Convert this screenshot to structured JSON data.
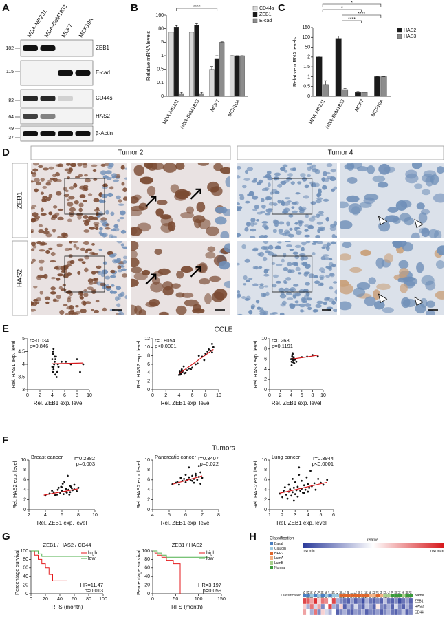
{
  "panels": {
    "A": {
      "label": "A",
      "cell_lines": [
        "MDA-MB231",
        "MDA-BoM1833",
        "MCF7",
        "MCF10A"
      ],
      "markers": [
        182,
        115,
        82,
        64,
        49,
        37
      ],
      "proteins": [
        "ZEB1",
        "E-cad",
        "CD44s",
        "HAS2",
        "β-Actin"
      ]
    },
    "D": {
      "label": "D",
      "tumors": [
        "Tumor 2",
        "Tumor 4"
      ],
      "stains": [
        "ZEB1",
        "HAS2"
      ]
    },
    "E": {
      "label": "E",
      "title": "CCLE"
    },
    "F": {
      "label": "F",
      "title": "Tumors"
    },
    "G": {
      "label": "G"
    },
    "H": {
      "label": "H",
      "classification_title": "Classification",
      "classes": [
        {
          "name": "Basal",
          "color": "#4a7fc1"
        },
        {
          "name": "Claudin",
          "color": "#9ecae1"
        },
        {
          "name": "HER2",
          "color": "#e0662a"
        },
        {
          "name": "LumA",
          "color": "#f4b183"
        },
        {
          "name": "LumB",
          "color": "#a9d18e"
        },
        {
          "name": "Normal",
          "color": "#3a9a3a"
        }
      ],
      "scale_title": "relative",
      "scale_min": "row min",
      "scale_max": "row max",
      "samples": [
        "GSM50105",
        "GSM501245",
        "GSM501246",
        "GSM50225",
        "GSM59170",
        "GSM441080",
        "GSM411086",
        "GSM441117",
        "GSM50229",
        "GSM50247",
        "GSM441166",
        "GSM44541",
        "GSM441140",
        "GSM472561",
        "GSM472531",
        "GSM441108",
        "GSM44677",
        "GSM44486",
        "GSM411096",
        "GSM44553",
        "GSM727818",
        "GSM727804",
        "GSM44583",
        "GSM727851",
        "GSM727870",
        "GSM727868",
        "GSM727884",
        "GSM727866",
        "GSM727890",
        "GSM727858"
      ],
      "sample_classes": [
        "Basal",
        "Basal",
        "Claudin",
        "Basal",
        "Claudin",
        "Basal",
        "Claudin",
        "Basal",
        "Claudin",
        "Claudin",
        "HER2",
        "HER2",
        "HER2",
        "HER2",
        "HER2",
        "HER2",
        "HER2",
        "HER2",
        "LumA",
        "LumA",
        "HER2",
        "LumA",
        "LumB",
        "LumB",
        "Normal",
        "Normal",
        "Normal",
        "LumB",
        "Normal",
        "Normal"
      ],
      "class_row_label": "Classification",
      "row_header": "Name",
      "rows": [
        {
          "name": "ZEB1",
          "values": [
            0.9,
            0.85,
            0.7,
            0.95,
            0.6,
            0.8,
            0.75,
            0.5,
            0.9,
            0.3,
            0.2,
            0.15,
            0.1,
            0.25,
            0.1,
            0.2,
            0.05,
            0.3,
            0.15,
            0.1,
            0.2,
            0.1,
            0.35,
            0.15,
            0.1,
            0.2,
            0.05,
            0.15,
            0.25,
            0.1
          ]
        },
        {
          "name": "HAS2",
          "values": [
            0.6,
            0.3,
            0.8,
            0.4,
            0.7,
            0.2,
            0.5,
            0.9,
            0.3,
            0.2,
            0.6,
            0.1,
            0.3,
            0.15,
            0.4,
            0.2,
            0.1,
            0.35,
            0.25,
            0.1,
            0.55,
            0.2,
            0.15,
            0.3,
            0.1,
            0.4,
            0.2,
            0.1,
            0.3,
            0.15
          ]
        },
        {
          "name": "CD44",
          "values": [
            0.7,
            0.5,
            0.3,
            0.8,
            0.2,
            0.6,
            0.4,
            0.3,
            0.5,
            0.1,
            0.2,
            0.3,
            0.15,
            0.1,
            0.25,
            0.2,
            0.3,
            0.1,
            0.2,
            0.15,
            0.25,
            0.1,
            0.2,
            0.3,
            0.15,
            0.1,
            0.2,
            0.35,
            0.1,
            0.2
          ]
        }
      ]
    }
  },
  "chart_data": [
    {
      "panel": "B",
      "type": "bar",
      "ylabel": "Relative mRNA levels",
      "categories": [
        "MDA-MB231",
        "MDA-BoM1833",
        "MCF7",
        "MCF10A"
      ],
      "series": [
        {
          "name": "CD44s",
          "color": "#d9d9d9",
          "values": [
            60,
            60,
            0.5,
            1
          ],
          "errors": [
            2,
            2,
            0.1,
            0
          ]
        },
        {
          "name": "ZEB1",
          "color": "#1a1a1a",
          "values": [
            90,
            100,
            0.9,
            1
          ],
          "errors": [
            8,
            10,
            0.1,
            0
          ]
        },
        {
          "name": "E-cad",
          "color": "#8c8c8c",
          "values": [
            0.02,
            0.02,
            5,
            1
          ],
          "errors": [
            0.01,
            0.01,
            2,
            0
          ]
        }
      ],
      "ylim": [
        0,
        160
      ],
      "yticks": [
        0,
        0.1,
        0.5,
        1,
        5,
        80,
        160
      ],
      "annotations": [
        "****"
      ]
    },
    {
      "panel": "C",
      "type": "bar",
      "ylabel": "Relative mRNA levels",
      "categories": [
        "MDA-MB231",
        "MDA-BoM1833",
        "MCF7",
        "MCF10A"
      ],
      "series": [
        {
          "name": "HAS2",
          "color": "#1a1a1a",
          "values": [
            2.2,
            95,
            0.2,
            1
          ],
          "errors": [
            0.1,
            12,
            0.05,
            0
          ]
        },
        {
          "name": "HAS3",
          "color": "#8c8c8c",
          "values": [
            0.6,
            0.35,
            0.2,
            1
          ],
          "errors": [
            0.2,
            0.05,
            0.03,
            0
          ]
        }
      ],
      "ylim": [
        0,
        150
      ],
      "yticks": [
        0,
        0.5,
        1,
        1.5,
        2,
        50,
        100,
        150
      ],
      "annotations": [
        "*",
        "*",
        "****",
        "****"
      ]
    },
    {
      "type": "scatter",
      "xlabel": "Rel. ZEB1 exp. level",
      "ylabel": "Rel. HAS1 exp. level",
      "annotations": [
        "r=-0.034",
        "p=0.846"
      ],
      "x": [
        4,
        4.2,
        4.1,
        4.3,
        4.5,
        4.4,
        4,
        4.6,
        4.2,
        4.8,
        4.3,
        4.1,
        5,
        4.5,
        4.7,
        4.2,
        6.2,
        7,
        8,
        8.5,
        9,
        5.5,
        4.4,
        4.9,
        4.1
      ],
      "y": [
        4.2,
        3.8,
        4.5,
        4.0,
        3.6,
        4.1,
        3.9,
        4.3,
        4.6,
        3.7,
        4.0,
        4.4,
        3.9,
        4.2,
        3.5,
        3.9,
        4.1,
        4.0,
        4.2,
        3.7,
        4.0,
        4.1,
        4.3,
        4.0,
        3.7
      ],
      "fit": {
        "x": [
          4,
          9
        ],
        "y": [
          4.02,
          4.05
        ],
        "color": "#d7191c"
      },
      "color": "#111111",
      "xlim": [
        0,
        10
      ],
      "xticks": [
        0,
        2,
        4,
        6,
        8,
        10
      ],
      "ylim": [
        3,
        5
      ],
      "yticks": [
        3,
        3.5,
        4,
        4.5,
        5
      ]
    },
    {
      "type": "scatter",
      "xlabel": "Rel. ZEB1 exp. level",
      "ylabel": "Rel. HAS2 exp. level",
      "annotations": [
        "r=0.8054",
        "p<0.0001"
      ],
      "x": [
        4,
        4.1,
        4.3,
        4.5,
        4.2,
        4.6,
        4.4,
        5,
        5.2,
        4.8,
        4.1,
        4.3,
        5.5,
        6,
        6.5,
        7,
        7.5,
        8,
        8.3,
        8.5,
        8.8,
        9,
        9.2,
        4.4,
        4.2,
        4.7,
        5.8,
        6.8,
        7.8,
        9
      ],
      "y": [
        3.5,
        4,
        3.8,
        4.2,
        3.6,
        4.5,
        4.8,
        4,
        4.6,
        3.9,
        4.3,
        4.1,
        5,
        5.2,
        6,
        8,
        7.8,
        8.5,
        9,
        9.5,
        9.2,
        10.8,
        10,
        4.4,
        3.7,
        5.5,
        4.8,
        6.2,
        7,
        8.8
      ],
      "fit": {
        "x": [
          4,
          9.2
        ],
        "y": [
          3.8,
          9.5
        ],
        "color": "#d7191c"
      },
      "color": "#111111",
      "xlim": [
        0,
        10
      ],
      "xticks": [
        0,
        2,
        4,
        6,
        8,
        10
      ],
      "ylim": [
        0,
        12
      ],
      "yticks": [
        0,
        2,
        4,
        6,
        8,
        10,
        12
      ]
    },
    {
      "type": "scatter",
      "xlabel": "Rel. ZEB1 exp. level",
      "ylabel": "Rel. HAS3 exp. level",
      "annotations": [
        "r=0.268",
        "p=0.1191"
      ],
      "x": [
        4,
        4.1,
        4.2,
        4.3,
        4.4,
        4.5,
        4.6,
        4.2,
        4.1,
        4.8,
        5,
        4.3,
        4.5,
        4.7,
        6,
        7,
        8,
        9,
        4.4,
        4.2
      ],
      "y": [
        6,
        5.5,
        6.5,
        7,
        5.8,
        6.2,
        5.2,
        6.8,
        4.8,
        6,
        5.5,
        7.2,
        6.4,
        5.9,
        6.4,
        6.5,
        6.8,
        6.5,
        5.4,
        6.1
      ],
      "fit": {
        "x": [
          4,
          9.2
        ],
        "y": [
          6.0,
          6.8
        ],
        "color": "#d7191c"
      },
      "color": "#111111",
      "xlim": [
        0,
        10
      ],
      "xticks": [
        0,
        2,
        4,
        6,
        8,
        10
      ],
      "ylim": [
        0,
        10
      ],
      "yticks": [
        0,
        2,
        4,
        6,
        8,
        10
      ]
    },
    {
      "type": "scatter",
      "title": "Breast cancer",
      "xlabel": "Rel. ZEB1 exp. level",
      "ylabel": "Rel. HAS2 exp. level",
      "annotations": [
        "r=0.2882",
        "p=0.003"
      ],
      "x": [
        4,
        4.5,
        5,
        5.2,
        5.5,
        5.8,
        6,
        6,
        6.2,
        6.3,
        6.5,
        6.5,
        6.7,
        6.8,
        7,
        7,
        7.2,
        7.3,
        7.5,
        7.5,
        7.8,
        8,
        5.4,
        5.9,
        6.1,
        6.6,
        7.1,
        4.8,
        5.6,
        6.9
      ],
      "y": [
        2.8,
        3.2,
        3.5,
        2.9,
        4.0,
        3.3,
        3.8,
        4.5,
        3.1,
        5.6,
        4.2,
        3.6,
        6.8,
        4.0,
        3.5,
        4.8,
        4.3,
        3.9,
        5.0,
        4.1,
        3.7,
        4.4,
        3.0,
        4.6,
        5.2,
        3.4,
        4.6,
        3.8,
        4.4,
        3.0
      ],
      "fit": {
        "x": [
          3.8,
          8
        ],
        "y": [
          2.9,
          4.2
        ],
        "color": "#d7191c"
      },
      "color": "#111111",
      "xlim": [
        2,
        10
      ],
      "xticks": [
        2,
        4,
        6,
        8,
        10
      ],
      "ylim": [
        0,
        10
      ],
      "yticks": [
        0,
        2,
        4,
        6,
        8,
        10
      ]
    },
    {
      "type": "scatter",
      "title": "Pancreatic cancer",
      "xlabel": "Rel. ZEB1 exp. level",
      "ylabel": "Rel. HAS2 exp. level",
      "annotations": [
        "r=0.3407",
        "p=0.022"
      ],
      "x": [
        5.2,
        5.4,
        5.5,
        5.6,
        5.8,
        5.9,
        6,
        6.1,
        6.2,
        6.3,
        6.4,
        6.5,
        6.6,
        6.7,
        6.8,
        6.9,
        7,
        6.2,
        6.5,
        6.8,
        5.7,
        6.0,
        6.4,
        6.6,
        6.9
      ],
      "y": [
        5.1,
        5.4,
        5.6,
        5.0,
        5.8,
        6.2,
        5.5,
        6.0,
        6.5,
        5.9,
        6.8,
        6.2,
        7.2,
        6.0,
        6.6,
        7.5,
        6.4,
        8.5,
        5.4,
        8.8,
        6.4,
        7.0,
        5.8,
        6.9,
        5.2
      ],
      "fit": {
        "x": [
          5.2,
          7.0
        ],
        "y": [
          5.1,
          6.8
        ],
        "color": "#d7191c"
      },
      "color": "#111111",
      "xlim": [
        4,
        8
      ],
      "xticks": [
        4,
        5,
        6,
        7,
        8
      ],
      "ylim": [
        0,
        10
      ],
      "yticks": [
        0,
        2,
        4,
        6,
        8,
        10
      ]
    },
    {
      "type": "scatter",
      "title": "Lung cancer",
      "xlabel": "Rel. ZEB1 exp. level",
      "ylabel": "Rel. HAS2 exp. level",
      "annotations": [
        "r=0.3944",
        "p<0.0001"
      ],
      "x": [
        1.8,
        2,
        2.1,
        2.2,
        2.3,
        2.4,
        2.5,
        2.5,
        2.6,
        2.7,
        2.8,
        2.8,
        2.9,
        3,
        3,
        3.1,
        3.2,
        3.2,
        3.3,
        3.4,
        3.5,
        3.5,
        3.6,
        3.7,
        3.8,
        3.9,
        4,
        4,
        4.1,
        4.2,
        4.3,
        4.5,
        4.6,
        4.8,
        5,
        5.2,
        5.5,
        2.9,
        3.3,
        3.7
      ],
      "y": [
        3.2,
        2.5,
        3.8,
        4.5,
        3.0,
        2.2,
        3.6,
        5.0,
        4.1,
        2.8,
        3.5,
        6.2,
        4.4,
        3.1,
        5.5,
        3.9,
        4.6,
        2.6,
        7.0,
        3.8,
        4.2,
        5.8,
        3.4,
        4.9,
        4.0,
        6.5,
        3.6,
        5.1,
        4.4,
        7.8,
        4.7,
        5.3,
        4.0,
        6.2,
        5.4,
        5.0,
        6.0,
        1.8,
        8.5,
        3.3
      ],
      "fit": {
        "x": [
          1.8,
          5.5
        ],
        "y": [
          3.3,
          5.5
        ],
        "color": "#d7191c"
      },
      "color": "#111111",
      "xlim": [
        1,
        6
      ],
      "xticks": [
        1,
        2,
        3,
        4,
        5,
        6
      ],
      "ylim": [
        0,
        10
      ],
      "yticks": [
        0,
        2,
        4,
        6,
        8,
        10
      ]
    },
    {
      "type": "line",
      "title": "ZEB1 / HAS2 / CD44",
      "xlabel": "RFS (month)",
      "ylabel": "Percentage survival",
      "annotations": [
        "HR=11.47",
        "p=0.013"
      ],
      "series": [
        {
          "name": "high",
          "color": "#e41a1c",
          "x": [
            0,
            5,
            5,
            10,
            10,
            15,
            15,
            20,
            20,
            25,
            25,
            30,
            30,
            50
          ],
          "values": [
            100,
            100,
            90,
            90,
            80,
            80,
            70,
            70,
            60,
            60,
            45,
            45,
            30,
            30
          ]
        },
        {
          "name": "low",
          "color": "#4daf4a",
          "x": [
            0,
            10,
            10,
            15,
            15,
            80
          ],
          "values": [
            100,
            100,
            93,
            93,
            87,
            87
          ]
        }
      ],
      "xlim": [
        0,
        100
      ],
      "xticks": [
        0,
        20,
        40,
        60,
        80,
        100
      ],
      "ylim": [
        0,
        100
      ],
      "yticks": [
        0,
        20,
        40,
        60,
        80,
        100
      ]
    },
    {
      "type": "line",
      "title": "ZEB1 / HAS2",
      "xlabel": "RFS (month)",
      "ylabel": "Percentage survival",
      "annotations": [
        "HR=3.197",
        "p=0.059"
      ],
      "series": [
        {
          "name": "high",
          "color": "#e41a1c",
          "x": [
            0,
            5,
            5,
            10,
            10,
            20,
            20,
            30,
            30,
            45,
            45,
            60,
            60
          ],
          "values": [
            100,
            100,
            95,
            95,
            90,
            90,
            85,
            85,
            78,
            78,
            70,
            70,
            0
          ]
        },
        {
          "name": "low",
          "color": "#4daf4a",
          "x": [
            0,
            10,
            10,
            20,
            20,
            30,
            30,
            120
          ],
          "values": [
            100,
            100,
            95,
            95,
            90,
            90,
            85,
            85
          ]
        }
      ],
      "xlim": [
        0,
        150
      ],
      "xticks": [
        0,
        50,
        100,
        150
      ],
      "ylim": [
        0,
        100
      ],
      "yticks": [
        0,
        20,
        40,
        60,
        80,
        100
      ]
    }
  ]
}
